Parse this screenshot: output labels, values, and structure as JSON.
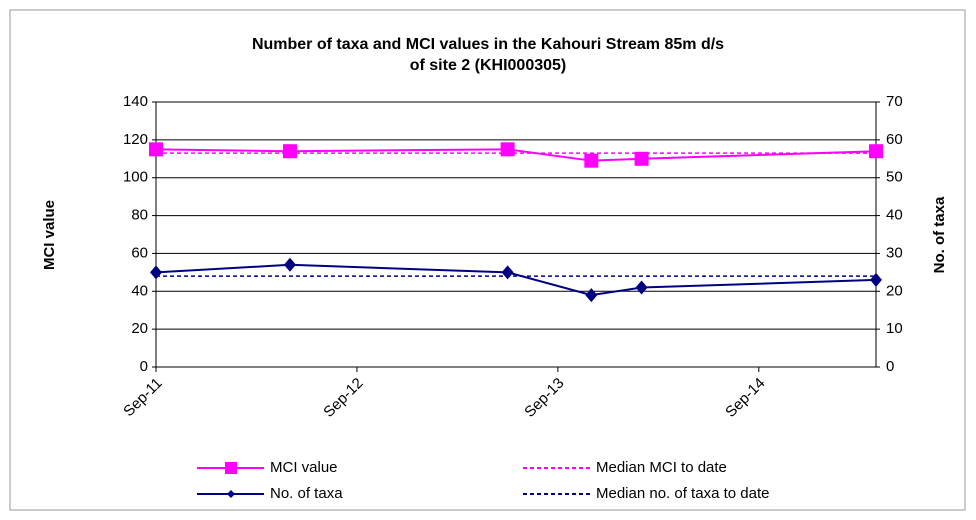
{
  "chart_data": {
    "type": "line",
    "title": [
      "Number of taxa and MCI values in the Kahouri Stream 85m d/s",
      "of site 2 (KHI000305)"
    ],
    "y_label": "MCI value",
    "y2_label": "No. of taxa",
    "x": [
      "2011-09",
      "2012-05",
      "2013-06",
      "2013-11",
      "2014-02",
      "2015-04"
    ],
    "xlim": [
      "2011-09",
      "2015-04"
    ],
    "xticks": [
      {
        "value": "2011-09",
        "label": "Sep-11"
      },
      {
        "value": "2012-09",
        "label": "Sep-12"
      },
      {
        "value": "2013-09",
        "label": "Sep-13"
      },
      {
        "value": "2014-09",
        "label": "Sep-14"
      }
    ],
    "ylim": [
      0,
      140
    ],
    "yticks": [
      0,
      20,
      40,
      60,
      80,
      100,
      120,
      140
    ],
    "y2lim": [
      0,
      70
    ],
    "y2ticks": [
      0,
      10,
      20,
      30,
      40,
      50,
      60,
      70
    ],
    "grid": true,
    "series": [
      {
        "name": "MCI value",
        "color": "#ff00ff",
        "marker": "square",
        "dashed": false,
        "values": [
          115,
          114,
          115,
          109,
          110,
          114
        ]
      },
      {
        "name": "Median MCI to date",
        "color": "#ff00ff",
        "marker": "none",
        "dashed": true,
        "values": [
          113,
          113,
          113,
          113,
          113,
          113
        ]
      },
      {
        "name": "No. of taxa",
        "color": "#000080",
        "marker": "diamond",
        "dashed": false,
        "axis": "y2",
        "values": [
          25,
          27,
          25,
          19,
          21,
          23
        ]
      },
      {
        "name": "Median no. of taxa to date",
        "color": "#000080",
        "marker": "none",
        "dashed": true,
        "axis": "y2",
        "values": [
          24,
          24,
          24,
          24,
          24,
          24
        ]
      }
    ]
  }
}
